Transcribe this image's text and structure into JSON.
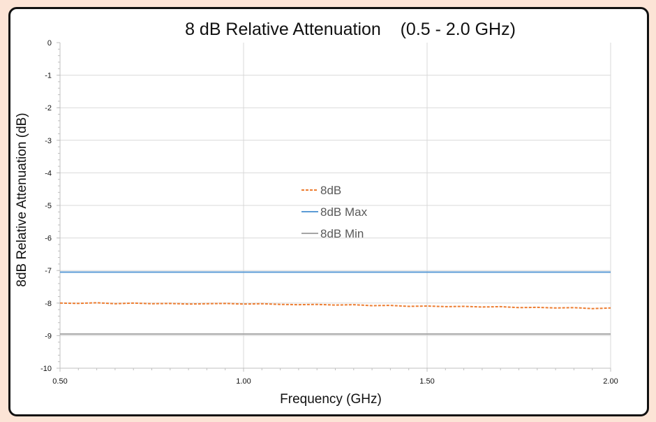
{
  "chart_data": {
    "type": "line",
    "title": "8 dB Relative Attenuation    (0.5 - 2.0 GHz)",
    "xlabel": "Frequency (GHz)",
    "ylabel": "8dB Relative Attenuation (dB)",
    "xlim": [
      0.5,
      2.0
    ],
    "ylim": [
      -10,
      0
    ],
    "x_ticks": [
      "0.50",
      "1.00",
      "1.50",
      "2.00"
    ],
    "y_ticks": [
      "0",
      "-1",
      "-2",
      "-3",
      "-4",
      "-5",
      "-6",
      "-7",
      "-8",
      "-9",
      "-10"
    ],
    "grid": true,
    "legend_position": "center",
    "series": [
      {
        "name": "8dB",
        "color": "#ed7d31",
        "dash": "dashed",
        "x": [
          0.5,
          0.55,
          0.6,
          0.65,
          0.7,
          0.75,
          0.8,
          0.85,
          0.9,
          0.95,
          1.0,
          1.05,
          1.1,
          1.15,
          1.2,
          1.25,
          1.3,
          1.35,
          1.4,
          1.45,
          1.5,
          1.55,
          1.6,
          1.65,
          1.7,
          1.75,
          1.8,
          1.85,
          1.9,
          1.95,
          2.0
        ],
        "y": [
          -8.0,
          -8.01,
          -7.99,
          -8.02,
          -8.0,
          -8.02,
          -8.01,
          -8.03,
          -8.02,
          -8.01,
          -8.03,
          -8.02,
          -8.04,
          -8.05,
          -8.04,
          -8.06,
          -8.05,
          -8.08,
          -8.07,
          -8.1,
          -8.09,
          -8.11,
          -8.1,
          -8.12,
          -8.11,
          -8.14,
          -8.13,
          -8.15,
          -8.14,
          -8.17,
          -8.15
        ]
      },
      {
        "name": "8dB Max",
        "color": "#5b9bd5",
        "dash": "solid",
        "x": [
          0.5,
          2.0
        ],
        "y": [
          -7.05,
          -7.05
        ]
      },
      {
        "name": "8dB Min",
        "color": "#a5a5a5",
        "dash": "solid",
        "x": [
          0.5,
          2.0
        ],
        "y": [
          -8.95,
          -8.95
        ]
      }
    ]
  }
}
